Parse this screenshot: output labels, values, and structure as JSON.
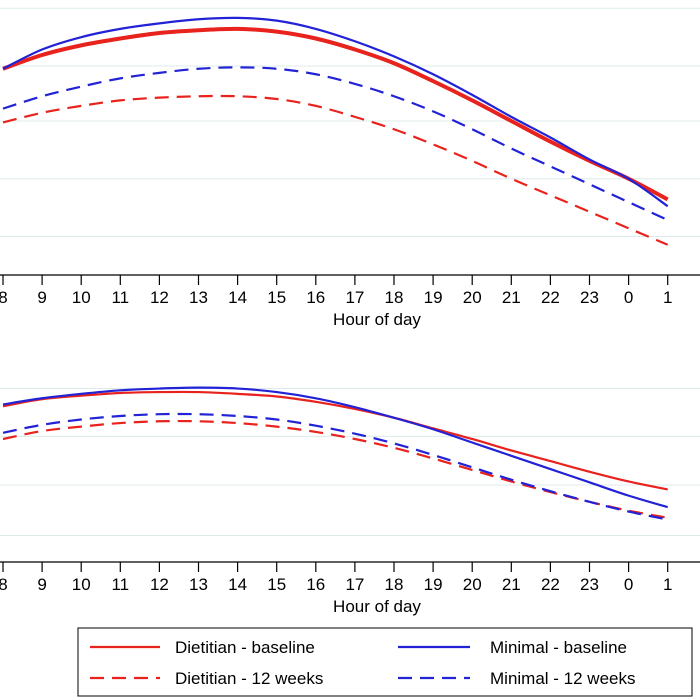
{
  "colors": {
    "dietitian": "#e8221c",
    "minimal": "#2222d6",
    "grid": "#dcebea",
    "axis": "#000000"
  },
  "chart_data": [
    {
      "type": "line",
      "title": "",
      "xlabel": "Hour of day",
      "ylabel": "",
      "x": [
        8,
        9,
        10,
        11,
        12,
        13,
        14,
        15,
        16,
        17,
        18,
        19,
        20,
        21,
        22,
        23,
        24,
        25
      ],
      "x_tick_labels": [
        "8",
        "9",
        "10",
        "11",
        "12",
        "13",
        "14",
        "15",
        "16",
        "17",
        "18",
        "19",
        "20",
        "21",
        "22",
        "23",
        "0",
        "1"
      ],
      "ylim": [
        0,
        100
      ],
      "gridlines": [
        14,
        35,
        56,
        76,
        97
      ],
      "grid": true,
      "series": [
        {
          "name": "Dietitian - baseline",
          "style": "solid",
          "color": "#e8221c",
          "width": 4,
          "values": [
            75,
            80,
            83.5,
            86,
            88,
            89,
            89.5,
            88.5,
            86,
            82,
            77,
            70.5,
            63.5,
            56,
            48.5,
            41.5,
            35,
            27.5
          ]
        },
        {
          "name": "Minimal - baseline",
          "style": "solid",
          "color": "#2222d6",
          "width": 2.2,
          "values": [
            75,
            82,
            86.5,
            89.5,
            91.5,
            93,
            93.5,
            92.5,
            89.5,
            85,
            79.5,
            73,
            65.5,
            57.5,
            50,
            42,
            35,
            25
          ]
        },
        {
          "name": "Dietitian - 12 weeks",
          "style": "dashed",
          "color": "#e8221c",
          "width": 2.2,
          "values": [
            55.5,
            59,
            61.5,
            63.5,
            64.5,
            65,
            65,
            64,
            61.5,
            57.5,
            53,
            47.5,
            41.5,
            35,
            29,
            23,
            17,
            11
          ]
        },
        {
          "name": "Minimal - 12 weeks",
          "style": "dashed",
          "color": "#2222d6",
          "width": 2.2,
          "values": [
            60.5,
            65,
            68.5,
            71.5,
            73.5,
            75,
            75.5,
            75,
            73,
            69.5,
            65,
            59.5,
            53,
            46,
            39.5,
            33,
            26.5,
            20
          ]
        }
      ]
    },
    {
      "type": "line",
      "title": "",
      "xlabel": "Hour of day",
      "ylabel": "",
      "x": [
        8,
        9,
        10,
        11,
        12,
        13,
        14,
        15,
        16,
        17,
        18,
        19,
        20,
        21,
        22,
        23,
        24,
        25
      ],
      "x_tick_labels": [
        "8",
        "9",
        "10",
        "11",
        "12",
        "13",
        "14",
        "15",
        "16",
        "17",
        "18",
        "19",
        "20",
        "21",
        "22",
        "23",
        "0",
        "1"
      ],
      "ylim": [
        0,
        100
      ],
      "gridlines": [
        15,
        43.5,
        71,
        98
      ],
      "grid": true,
      "series": [
        {
          "name": "Dietitian - baseline",
          "style": "solid",
          "color": "#e8221c",
          "width": 2.2,
          "values": [
            88,
            92,
            94,
            95.5,
            96,
            96,
            95,
            93.5,
            90.5,
            86.5,
            81.5,
            75.5,
            69.5,
            63,
            57,
            51,
            45.5,
            41
          ]
        },
        {
          "name": "Minimal - baseline",
          "style": "solid",
          "color": "#2222d6",
          "width": 2.2,
          "values": [
            89,
            92.5,
            95,
            97,
            98,
            98.5,
            98,
            96,
            92.5,
            87.5,
            81.5,
            75,
            67.5,
            60,
            52.5,
            45,
            37.5,
            31
          ]
        },
        {
          "name": "Dietitian - 12 weeks",
          "style": "dashed",
          "color": "#e8221c",
          "width": 2.2,
          "values": [
            69.5,
            74,
            76.5,
            78.5,
            79.5,
            79.5,
            78.5,
            76.5,
            73.5,
            69.5,
            64.5,
            58.5,
            52,
            45.5,
            39.5,
            34,
            29,
            25
          ]
        },
        {
          "name": "Minimal - 12 weeks",
          "style": "dashed",
          "color": "#2222d6",
          "width": 2.2,
          "values": [
            73,
            77.5,
            80.5,
            82.5,
            83.5,
            83.5,
            82.5,
            80.5,
            77,
            72.5,
            67,
            60.5,
            53.5,
            46.5,
            40,
            34,
            28.5,
            24
          ]
        }
      ]
    }
  ],
  "legend": {
    "items": [
      {
        "label": "Dietitian - baseline",
        "style": "solid",
        "color": "#e8221c"
      },
      {
        "label": "Minimal - baseline",
        "style": "solid",
        "color": "#2222d6"
      },
      {
        "label": "Dietitian - 12 weeks",
        "style": "dashed",
        "color": "#e8221c"
      },
      {
        "label": "Minimal - 12 weeks",
        "style": "dashed",
        "color": "#2222d6"
      }
    ]
  }
}
